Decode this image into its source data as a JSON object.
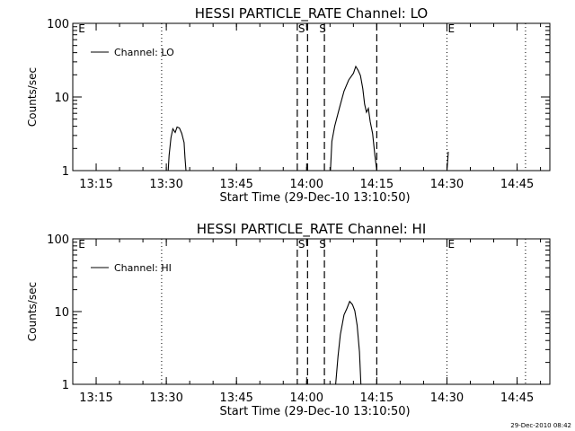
{
  "chart_data": [
    {
      "type": "line",
      "title": "HESSI PARTICLE_RATE Channel: LO",
      "xlabel": "Start Time (29-Dec-10 13:10:50)",
      "ylabel": "Counts/sec",
      "y_scale": "log",
      "ylim": [
        1,
        100
      ],
      "y_ticks": [
        "1",
        "10",
        "100"
      ],
      "xlim": [
        "13:10",
        "14:52"
      ],
      "x_ticks": [
        "13:15",
        "13:30",
        "13:45",
        "14:00",
        "14:15",
        "14:30",
        "14:45"
      ],
      "legend": "top-left",
      "series": [
        {
          "name": "Channel: LO",
          "color": "#000000",
          "segments": [
            [
              [
                "13:30.4",
                1
              ],
              [
                "13:30.6",
                1.6
              ],
              [
                "13:31.0",
                2.8
              ],
              [
                "13:31.4",
                3.7
              ],
              [
                "13:31.9",
                3.3
              ],
              [
                "13:32.3",
                3.9
              ],
              [
                "13:32.8",
                3.8
              ],
              [
                "13:33.3",
                3.2
              ],
              [
                "13:33.8",
                2.4
              ],
              [
                "13:34.0",
                1.5
              ],
              [
                "13:34.2",
                1
              ]
            ],
            [
              [
                "14:05.1",
                1
              ],
              [
                "14:05.4",
                2.5
              ],
              [
                "14:06.0",
                4.0
              ],
              [
                "14:07.0",
                7.0
              ],
              [
                "14:08.0",
                12.0
              ],
              [
                "14:09.0",
                17.0
              ],
              [
                "14:10.0",
                21.0
              ],
              [
                "14:10.5",
                26.0
              ],
              [
                "14:11.0",
                23.0
              ],
              [
                "14:11.5",
                19.5
              ],
              [
                "14:12.0",
                13.0
              ],
              [
                "14:12.4",
                8.0
              ],
              [
                "14:12.8",
                6.2
              ],
              [
                "14:13.2",
                7.0
              ],
              [
                "14:13.6",
                4.6
              ],
              [
                "14:14.1",
                3.2
              ],
              [
                "14:14.6",
                1.6
              ],
              [
                "14:15.0",
                1
              ]
            ],
            [
              [
                "14:30.0",
                1
              ],
              [
                "14:30.3",
                1.8
              ]
            ]
          ]
        }
      ],
      "annotations": [
        {
          "text": "E",
          "at": "13:11.0"
        },
        {
          "text": "S",
          "at": "13:58.0"
        },
        {
          "text": "S",
          "at": "14:02.5"
        },
        {
          "text": "E",
          "at": "14:30.0"
        }
      ],
      "dotted_lines": [
        "13:29.0",
        "14:30.0",
        "14:46.8"
      ],
      "dashed_lines": [
        "13:58.0",
        "14:00.2",
        "14:03.8",
        "14:15.0"
      ]
    },
    {
      "type": "line",
      "title": "HESSI PARTICLE_RATE Channel: HI",
      "xlabel": "Start Time (29-Dec-10 13:10:50)",
      "ylabel": "Counts/sec",
      "y_scale": "log",
      "ylim": [
        1,
        100
      ],
      "y_ticks": [
        "1",
        "10",
        "100"
      ],
      "xlim": [
        "13:10",
        "14:52"
      ],
      "x_ticks": [
        "13:15",
        "13:30",
        "13:45",
        "14:00",
        "14:15",
        "14:30",
        "14:45"
      ],
      "legend": "top-left",
      "series": [
        {
          "name": "Channel: HI",
          "color": "#000000",
          "segments": [
            [
              [
                "14:06.2",
                1
              ],
              [
                "14:06.7",
                2.4
              ],
              [
                "14:07.2",
                4.8
              ],
              [
                "14:08.0",
                9.0
              ],
              [
                "14:08.6",
                11.0
              ],
              [
                "14:09.2",
                13.8
              ],
              [
                "14:09.8",
                12.5
              ],
              [
                "14:10.3",
                10.3
              ],
              [
                "14:10.8",
                6.5
              ],
              [
                "14:11.3",
                2.8
              ],
              [
                "14:11.6",
                1
              ]
            ]
          ]
        }
      ],
      "annotations": [
        {
          "text": "E",
          "at": "13:11.0"
        },
        {
          "text": "S",
          "at": "13:58.0"
        },
        {
          "text": "S",
          "at": "14:02.5"
        },
        {
          "text": "E",
          "at": "14:30.0"
        }
      ],
      "dotted_lines": [
        "13:29.0",
        "14:30.0",
        "14:46.8"
      ],
      "dashed_lines": [
        "13:58.0",
        "14:00.2",
        "14:03.8",
        "14:15.0"
      ]
    }
  ],
  "footer": {
    "timestamp": "29-Dec-2010 08:42"
  }
}
